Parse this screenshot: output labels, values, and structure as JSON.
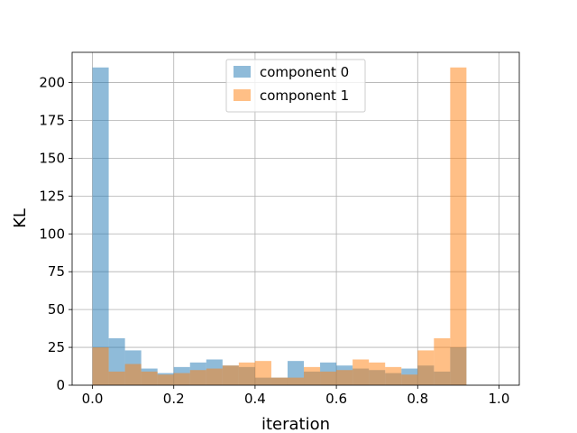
{
  "chart_data": {
    "type": "histogram",
    "xlabel": "iteration",
    "ylabel": "KL",
    "xlim": [
      -0.05,
      1.05
    ],
    "ylim": [
      0,
      220
    ],
    "xticks": [
      "0.0",
      "0.2",
      "0.4",
      "0.6",
      "0.8",
      "1.0"
    ],
    "yticks": [
      "0",
      "25",
      "50",
      "75",
      "100",
      "125",
      "150",
      "175",
      "200"
    ],
    "grid": true,
    "legend_position": "upper center",
    "bin_start": 0.0,
    "bin_width": 0.04,
    "series": [
      {
        "name": "component 0",
        "color": "#1f77b4",
        "values": [
          210,
          31,
          23,
          11,
          8,
          12,
          15,
          17,
          13,
          12,
          5,
          5,
          16,
          9,
          15,
          13,
          11,
          10,
          8,
          11,
          13,
          9,
          25
        ]
      },
      {
        "name": "component 1",
        "color": "#ff7f0e",
        "values": [
          25,
          9,
          14,
          9,
          7,
          8,
          10,
          11,
          13,
          15,
          16,
          5,
          5,
          12,
          9,
          10,
          17,
          15,
          12,
          7,
          23,
          31,
          210
        ]
      }
    ]
  }
}
